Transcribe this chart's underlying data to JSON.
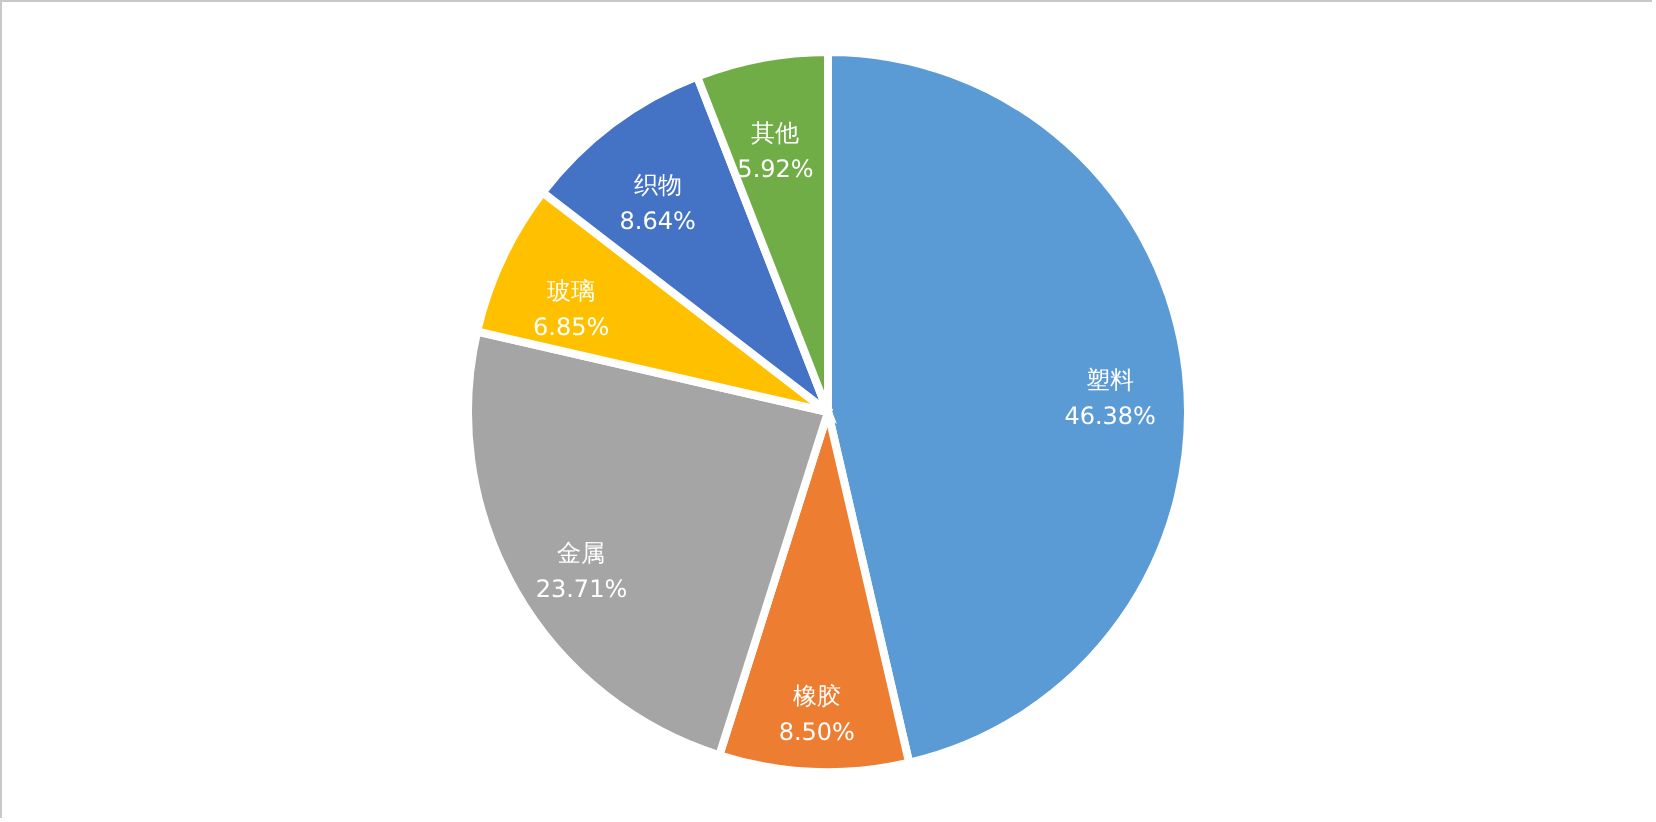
{
  "chart_data": {
    "type": "pie",
    "categories": [
      "塑料",
      "橡胶",
      "金属",
      "玻璃",
      "织物",
      "其他"
    ],
    "values": [
      46.38,
      8.5,
      23.71,
      6.85,
      8.64,
      5.92
    ],
    "value_labels": [
      "46.38%",
      "8.50%",
      "23.71%",
      "6.85%",
      "8.64%",
      "5.92%"
    ],
    "colors": [
      "#5b9bd5",
      "#ed7d31",
      "#a5a5a5",
      "#ffc000",
      "#4472c4",
      "#70ad47"
    ]
  }
}
